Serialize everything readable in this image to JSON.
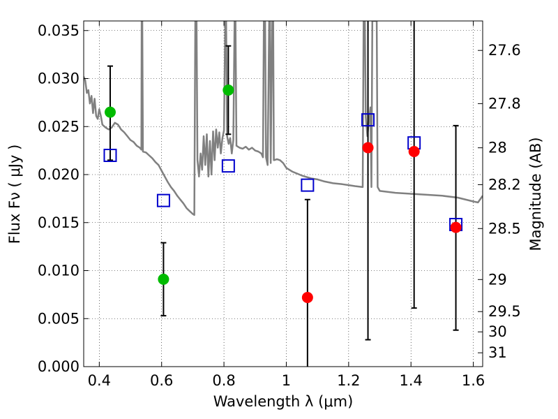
{
  "chart_data": {
    "type": "scatter",
    "xlabel": "Wavelength  λ (μm)",
    "ylabel": "Flux  Fν  ( μJy )",
    "y2label": "Magnitude (AB)",
    "xlim": [
      0.35,
      1.63
    ],
    "ylim": [
      0.0,
      0.036
    ],
    "grid": true,
    "x_ticks": [
      0.4,
      0.6,
      0.8,
      1.0,
      1.2,
      1.4,
      1.6
    ],
    "x_tick_labels": [
      "0.4",
      "0.6",
      "0.8",
      "1",
      "1.2",
      "1.4",
      "1.6"
    ],
    "y_ticks": [
      0.0,
      0.005,
      0.01,
      0.015,
      0.02,
      0.025,
      0.03,
      0.035
    ],
    "y_tick_labels": [
      "0.000",
      "0.005",
      "0.010",
      "0.015",
      "0.020",
      "0.025",
      "0.030",
      "0.035"
    ],
    "y2_ticks": [
      {
        "label": "27.6",
        "flux": 0.03293
      },
      {
        "label": "27.8",
        "flux": 0.02739
      },
      {
        "label": "28",
        "flux": 0.02279
      },
      {
        "label": "28.2",
        "flux": 0.01895
      },
      {
        "label": "28.5",
        "flux": 0.01438
      },
      {
        "label": "29",
        "flux": 0.00907
      },
      {
        "label": "29.5",
        "flux": 0.00573
      },
      {
        "label": "30",
        "flux": 0.00362
      },
      {
        "label": "31",
        "flux": 0.00144
      }
    ],
    "colors": {
      "detected": "#00bb00",
      "upper": "#ff0000",
      "model_points": "#0000cc",
      "sed": "#808080",
      "errorbar": "#000000"
    },
    "series": [
      {
        "style": "green-circle",
        "points": [
          {
            "x": 0.435,
            "y": 0.0265,
            "ylo": 0.0215,
            "yhi": 0.0313
          },
          {
            "x": 0.606,
            "y": 0.0091,
            "ylo": 0.0053,
            "yhi": 0.0129
          },
          {
            "x": 0.814,
            "y": 0.0288,
            "ylo": 0.0242,
            "yhi": 0.0334
          }
        ]
      },
      {
        "style": "red-circle",
        "points": [
          {
            "x": 1.068,
            "y": 0.0072,
            "ylo": 0.0,
            "yhi": 0.0174
          },
          {
            "x": 1.262,
            "y": 0.0228,
            "ylo": 0.0028,
            "yhi": 0.036
          },
          {
            "x": 1.41,
            "y": 0.0224,
            "ylo": 0.0061,
            "yhi": 0.036
          },
          {
            "x": 1.544,
            "y": 0.0145,
            "ylo": 0.0038,
            "yhi": 0.0251
          }
        ]
      },
      {
        "style": "blue-open-square",
        "points": [
          {
            "x": 0.435,
            "y": 0.022
          },
          {
            "x": 0.606,
            "y": 0.0173
          },
          {
            "x": 0.814,
            "y": 0.0209
          },
          {
            "x": 1.068,
            "y": 0.0189
          },
          {
            "x": 1.262,
            "y": 0.0257
          },
          {
            "x": 1.41,
            "y": 0.0233
          },
          {
            "x": 1.544,
            "y": 0.0148
          }
        ]
      }
    ],
    "sed_curve": {
      "style": "grey-line",
      "points": [
        [
          0.35,
          0.0302
        ],
        [
          0.355,
          0.0298
        ],
        [
          0.36,
          0.0285
        ],
        [
          0.365,
          0.0288
        ],
        [
          0.37,
          0.0274
        ],
        [
          0.375,
          0.0282
        ],
        [
          0.38,
          0.0264
        ],
        [
          0.385,
          0.0279
        ],
        [
          0.39,
          0.0261
        ],
        [
          0.395,
          0.0258
        ],
        [
          0.4,
          0.0268
        ],
        [
          0.405,
          0.0261
        ],
        [
          0.41,
          0.0252
        ],
        [
          0.42,
          0.0249
        ],
        [
          0.43,
          0.0247
        ],
        [
          0.44,
          0.0249
        ],
        [
          0.45,
          0.0254
        ],
        [
          0.46,
          0.0252
        ],
        [
          0.47,
          0.0247
        ],
        [
          0.48,
          0.0244
        ],
        [
          0.49,
          0.024
        ],
        [
          0.5,
          0.0236
        ],
        [
          0.51,
          0.0234
        ],
        [
          0.52,
          0.023
        ],
        [
          0.53,
          0.0228
        ],
        [
          0.535,
          0.0226
        ],
        [
          0.536,
          0.036
        ],
        [
          0.538,
          0.036
        ],
        [
          0.54,
          0.0224
        ],
        [
          0.55,
          0.0223
        ],
        [
          0.56,
          0.022
        ],
        [
          0.57,
          0.0217
        ],
        [
          0.58,
          0.0213
        ],
        [
          0.59,
          0.021
        ],
        [
          0.6,
          0.0204
        ],
        [
          0.61,
          0.0198
        ],
        [
          0.62,
          0.0192
        ],
        [
          0.63,
          0.0187
        ],
        [
          0.64,
          0.0183
        ],
        [
          0.65,
          0.0178
        ],
        [
          0.66,
          0.0174
        ],
        [
          0.67,
          0.017
        ],
        [
          0.68,
          0.0165
        ],
        [
          0.69,
          0.0162
        ],
        [
          0.7,
          0.0159
        ],
        [
          0.705,
          0.0158
        ],
        [
          0.708,
          0.036
        ],
        [
          0.712,
          0.036
        ],
        [
          0.715,
          0.0215
        ],
        [
          0.72,
          0.0198
        ],
        [
          0.725,
          0.0222
        ],
        [
          0.73,
          0.0205
        ],
        [
          0.735,
          0.024
        ],
        [
          0.74,
          0.021
        ],
        [
          0.745,
          0.0242
        ],
        [
          0.75,
          0.0198
        ],
        [
          0.755,
          0.0235
        ],
        [
          0.76,
          0.02
        ],
        [
          0.765,
          0.0245
        ],
        [
          0.77,
          0.0215
        ],
        [
          0.775,
          0.0247
        ],
        [
          0.78,
          0.0228
        ],
        [
          0.785,
          0.0244
        ],
        [
          0.79,
          0.0222
        ],
        [
          0.795,
          0.0238
        ],
        [
          0.8,
          0.0246
        ],
        [
          0.804,
          0.036
        ],
        [
          0.807,
          0.036
        ],
        [
          0.81,
          0.024
        ],
        [
          0.815,
          0.0232
        ],
        [
          0.82,
          0.0238
        ],
        [
          0.825,
          0.0222
        ],
        [
          0.83,
          0.0236
        ],
        [
          0.834,
          0.036
        ],
        [
          0.837,
          0.036
        ],
        [
          0.84,
          0.023
        ],
        [
          0.85,
          0.0228
        ],
        [
          0.86,
          0.0227
        ],
        [
          0.87,
          0.0229
        ],
        [
          0.88,
          0.0226
        ],
        [
          0.89,
          0.0228
        ],
        [
          0.9,
          0.0225
        ],
        [
          0.91,
          0.0224
        ],
        [
          0.92,
          0.0222
        ],
        [
          0.925,
          0.0218
        ],
        [
          0.928,
          0.036
        ],
        [
          0.932,
          0.036
        ],
        [
          0.935,
          0.0218
        ],
        [
          0.94,
          0.021
        ],
        [
          0.945,
          0.036
        ],
        [
          0.948,
          0.036
        ],
        [
          0.95,
          0.0212
        ],
        [
          0.955,
          0.036
        ],
        [
          0.958,
          0.036
        ],
        [
          0.96,
          0.0215
        ],
        [
          0.97,
          0.0216
        ],
        [
          0.98,
          0.0215
        ],
        [
          0.99,
          0.0212
        ],
        [
          1.0,
          0.0207
        ],
        [
          1.02,
          0.0203
        ],
        [
          1.05,
          0.0199
        ],
        [
          1.08,
          0.0196
        ],
        [
          1.1,
          0.0195
        ],
        [
          1.12,
          0.0193
        ],
        [
          1.15,
          0.0191
        ],
        [
          1.18,
          0.019
        ],
        [
          1.2,
          0.0189
        ],
        [
          1.22,
          0.0188
        ],
        [
          1.245,
          0.0187
        ],
        [
          1.248,
          0.036
        ],
        [
          1.252,
          0.036
        ],
        [
          1.255,
          0.026
        ],
        [
          1.26,
          0.024
        ],
        [
          1.265,
          0.0255
        ],
        [
          1.27,
          0.027
        ],
        [
          1.273,
          0.0187
        ],
        [
          1.276,
          0.036
        ],
        [
          1.29,
          0.036
        ],
        [
          1.293,
          0.0187
        ],
        [
          1.3,
          0.0183
        ],
        [
          1.35,
          0.0181
        ],
        [
          1.4,
          0.018
        ],
        [
          1.45,
          0.0179
        ],
        [
          1.5,
          0.0178
        ],
        [
          1.55,
          0.0176
        ],
        [
          1.6,
          0.0172
        ],
        [
          1.615,
          0.0171
        ],
        [
          1.63,
          0.0178
        ]
      ]
    }
  }
}
